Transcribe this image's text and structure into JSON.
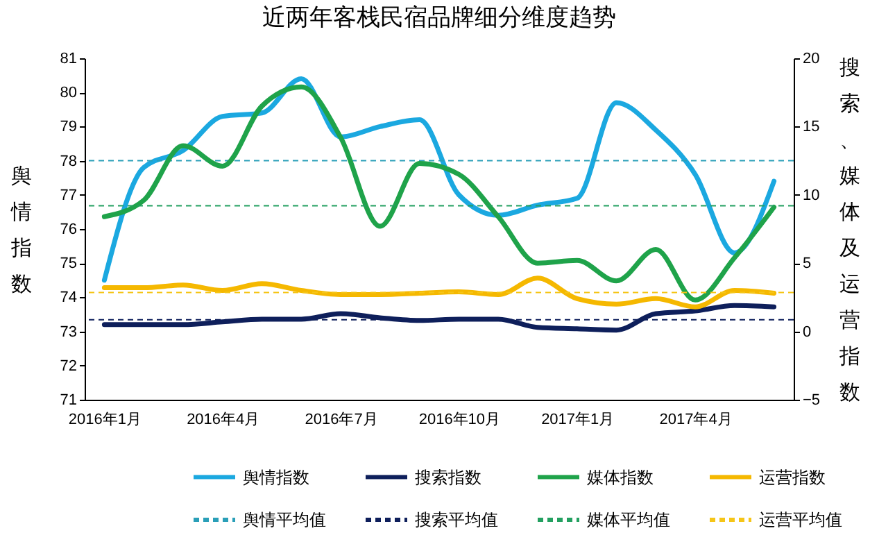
{
  "chart_data": {
    "type": "line",
    "title": "近两年客栈民宿品牌细分维度趋势",
    "ylabel": "舆情指数",
    "y2label": "搜索、媒体及运营指数",
    "categories": [
      "2016年1月",
      null,
      null,
      "2016年4月",
      null,
      null,
      "2016年7月",
      null,
      null,
      "2016年10月",
      null,
      null,
      "2017年1月",
      null,
      null,
      "2017年4月",
      null,
      null
    ],
    "series": [
      {
        "name": "舆情指数",
        "color": "#1ba8e0",
        "values": [
          74.5,
          77.8,
          78.3,
          79.3,
          79.4,
          80.4,
          78.7,
          79.0,
          79.2,
          77.0,
          76.4,
          76.7,
          76.9,
          79.7,
          78.9,
          77.6,
          75.3,
          77.4
        ]
      },
      {
        "name": "搜索指数",
        "color": "#0e1f5b",
        "axis": "y2",
        "values": [
          0.5,
          0.5,
          0.5,
          0.7,
          0.9,
          0.9,
          1.3,
          1.0,
          0.8,
          0.9,
          0.9,
          0.3,
          0.2,
          0.1,
          1.3,
          1.5,
          1.9,
          1.8
        ]
      },
      {
        "name": "媒体指数",
        "color": "#1fa34a",
        "axis": "y2",
        "values": [
          8.4,
          9.6,
          13.6,
          12.1,
          16.5,
          17.9,
          14.2,
          7.7,
          12.3,
          11.5,
          8.4,
          5.0,
          5.2,
          3.7,
          6.0,
          2.3,
          5.4,
          9.1
        ]
      },
      {
        "name": "运营指数",
        "color": "#f5b800",
        "axis": "y2",
        "values": [
          3.2,
          3.2,
          3.4,
          3.0,
          3.5,
          3.0,
          2.7,
          2.7,
          2.8,
          2.9,
          2.7,
          3.9,
          2.4,
          2.0,
          2.4,
          1.8,
          3.0,
          2.8
        ]
      }
    ],
    "ref_lines": [
      {
        "axis": "y",
        "value": 78,
        "label": "舆情平均值",
        "color": "#2a9fb8",
        "line_style": "dashed"
      },
      {
        "axis": "y2",
        "value": 0.85,
        "label": "搜索平均值",
        "color": "#0e1f5b",
        "line_style": "dashed"
      },
      {
        "axis": "y2",
        "value": 9.2,
        "label": "媒体平均值",
        "color": "#23a060",
        "line_style": "dashed"
      },
      {
        "axis": "y2",
        "value": 2.85,
        "label": "运营平均值",
        "color": "#f5c518",
        "line_style": "dashed"
      }
    ],
    "ylim": [
      71,
      81
    ],
    "yticks": [
      71,
      72,
      73,
      74,
      75,
      76,
      77,
      78,
      79,
      80,
      81
    ],
    "y2lim": [
      -5,
      20
    ],
    "y2ticks": [
      -5,
      0,
      5,
      10,
      15,
      20
    ],
    "legend": "bottom"
  }
}
